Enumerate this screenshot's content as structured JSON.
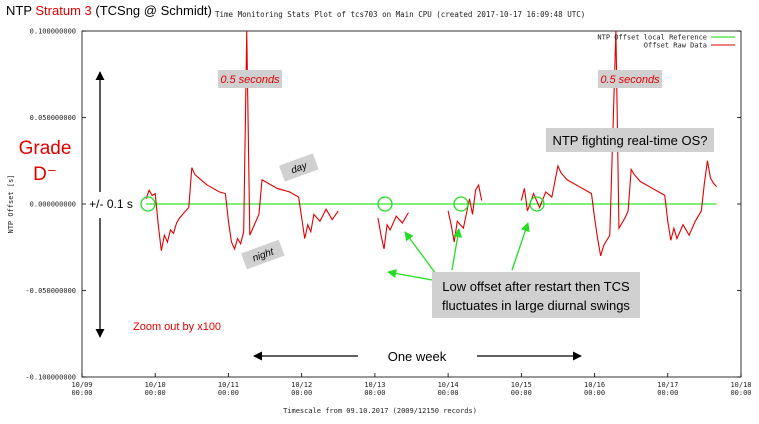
{
  "chart_data": {
    "type": "line",
    "header": {
      "lead": "NTP",
      "highlight": "Stratum 3",
      "tail": "(TCSng @ Schmidt)"
    },
    "title": "Time Monitoring Stats Plot of tcs703 on Main CPU (created 2017-10-17 16:09:48 UTC)",
    "y_label": "NTP Offset [s]",
    "x_label": "Timescale from 09.10.2017 (2009/12150 records)",
    "xlim": [
      "10/09 00:00",
      "10/18 00:00"
    ],
    "xticks": [
      "10/09 00:00",
      "10/10 00:00",
      "10/11 00:00",
      "10/12 00:00",
      "10/13 00:00",
      "10/14 00:00",
      "10/15 00:00",
      "10/16 00:00",
      "10/17 00:00",
      "10/18 00:00"
    ],
    "ylim": [
      -0.1,
      0.1
    ],
    "yticks": [
      {
        "value": -0.1,
        "label": "-0.100000000"
      },
      {
        "value": -0.05,
        "label": "-0.050000000"
      },
      {
        "value": 0,
        "label": "0.000000000"
      },
      {
        "value": 0.05,
        "label": "0.050000000"
      },
      {
        "value": 0.1,
        "label": "0.100000000"
      }
    ],
    "legend": "top-right",
    "series": [
      {
        "name": "NTP Offset local Reference",
        "color": "#00dd00",
        "x": [
          "10/09 21:00",
          "10/17 16:00"
        ],
        "values": [
          0,
          0
        ]
      },
      {
        "name": "Offset Raw Data",
        "color": "#e00000",
        "x": [
          "10/09 21:00",
          "10/09 22:00",
          "10/09 23:00",
          "10/10 00:00",
          "10/10 01:00",
          "10/10 02:00",
          "10/10 03:00",
          "10/10 04:00",
          "10/10 05:00",
          "10/10 06:00",
          "10/10 07:00",
          "10/10 08:00",
          "10/10 09:00",
          "10/10 10:00",
          "10/10 11:00",
          "10/10 12:00",
          "10/10 13:00",
          "10/10 15:00",
          "10/10 17:00",
          "10/10 19:00",
          "10/10 21:00",
          "10/10 23:00",
          "10/11 00:00",
          "10/11 01:00",
          "10/11 02:00",
          "10/11 03:00",
          "10/11 04:00",
          "10/11 05:00",
          "10/11 06:00",
          "10/11 07:00",
          "10/11 08:00",
          "10/11 09:00",
          "10/11 10:00",
          "10/11 11:00",
          "10/11 12:00",
          "10/11 14:00",
          "10/11 16:00",
          "10/11 18:00",
          "10/11 20:00",
          "10/11 22:00",
          "10/11 23:00",
          "10/12 00:00",
          "10/12 01:00",
          "10/12 02:00",
          "10/12 03:00",
          "10/12 04:00",
          "10/12 06:00",
          "10/12 08:00",
          "10/12 10:00",
          "10/12 12:00",
          "10/12 18:00",
          "10/13 01:00",
          "10/13 02:00",
          "10/13 03:00",
          "10/13 04:00",
          "10/13 05:00",
          "10/13 07:00",
          "10/13 09:00",
          "10/13 11:00",
          "10/13 18:00",
          "10/14 00:00",
          "10/14 01:00",
          "10/14 02:00",
          "10/14 03:00",
          "10/14 05:00",
          "10/14 07:00",
          "10/14 08:00",
          "10/14 09:00",
          "10/14 10:00",
          "10/14 11:00",
          "10/14 18:00",
          "10/15 00:00",
          "10/15 01:00",
          "10/15 02:00",
          "10/15 04:00",
          "10/15 06:00",
          "10/15 08:00",
          "10/15 10:00",
          "10/15 12:00",
          "10/15 13:00",
          "10/15 15:00",
          "10/15 17:00",
          "10/15 19:00",
          "10/15 21:00",
          "10/15 23:00",
          "10/16 00:00",
          "10/16 01:00",
          "10/16 02:00",
          "10/16 03:00",
          "10/16 05:00",
          "10/16 07:00",
          "10/16 08:00",
          "10/16 10:00",
          "10/16 11:00",
          "10/16 12:00",
          "10/16 13:00",
          "10/16 15:00",
          "10/16 17:00",
          "10/16 19:00",
          "10/16 21:00",
          "10/16 23:00",
          "10/17 00:00",
          "10/17 01:00",
          "10/17 02:00",
          "10/17 03:00",
          "10/17 05:00",
          "10/17 07:00",
          "10/17 09:00",
          "10/17 11:00",
          "10/17 12:00",
          "10/17 13:00",
          "10/17 14:00",
          "10/17 15:00",
          "10/17 16:00"
        ],
        "values": [
          0.003,
          0.008,
          0.005,
          0.006,
          -0.012,
          -0.027,
          -0.018,
          -0.022,
          -0.015,
          -0.017,
          -0.011,
          -0.008,
          -0.006,
          -0.004,
          -0.002,
          0.021,
          0.017,
          0.014,
          0.011,
          0.009,
          0.007,
          0.006,
          -0.01,
          -0.022,
          -0.026,
          -0.02,
          -0.023,
          -0.016,
          0.1,
          -0.018,
          -0.014,
          -0.01,
          -0.006,
          0.014,
          0.013,
          0.011,
          0.009,
          0.008,
          0.007,
          0.005,
          0.004,
          -0.008,
          -0.02,
          -0.012,
          -0.016,
          -0.006,
          -0.01,
          -0.003,
          -0.009,
          -0.004,
          null,
          -0.008,
          -0.018,
          -0.026,
          -0.012,
          -0.015,
          -0.007,
          -0.011,
          -0.005,
          null,
          -0.004,
          -0.012,
          -0.022,
          -0.01,
          -0.014,
          0.003,
          -0.006,
          0.008,
          0.011,
          0.002,
          null,
          0.002,
          0.009,
          -0.004,
          0.006,
          -0.002,
          0.007,
          0.004,
          0.022,
          0.018,
          0.014,
          0.012,
          0.01,
          0.008,
          0.006,
          -0.008,
          -0.02,
          -0.03,
          -0.024,
          -0.018,
          0.1,
          -0.014,
          -0.008,
          -0.004,
          0.02,
          0.017,
          0.013,
          0.011,
          0.009,
          0.007,
          0.005,
          -0.01,
          -0.021,
          -0.014,
          -0.02,
          -0.012,
          -0.018,
          -0.01,
          -0.004,
          0.012,
          0.025,
          0.015,
          0.012,
          0.01
        ]
      }
    ],
    "annotations": {
      "grade": "Grade",
      "grade_letter": "D⁻",
      "range": "+/- 0.1 s",
      "half_second_1": "0.5 seconds",
      "half_second_2": "0.5 seconds",
      "fighting": "NTP fighting real-time OS?",
      "day": "day",
      "night": "night",
      "restart_note": [
        "Low offset after restart then TCS",
        "fluctuates in large diurnal swings"
      ],
      "zoom": "Zoom out by x100",
      "week": "One week"
    }
  }
}
